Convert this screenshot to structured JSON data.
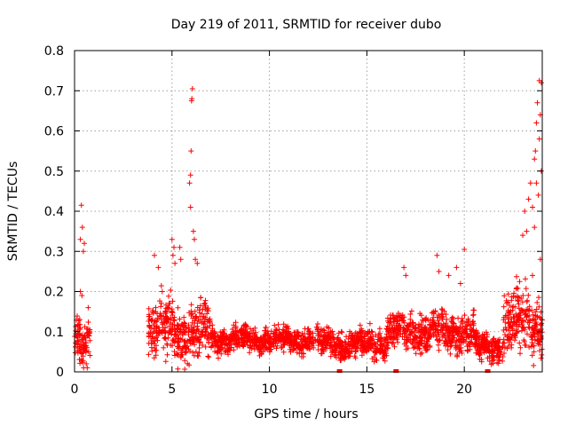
{
  "chart_data": {
    "type": "scatter",
    "title": "Day 219 of 2011, SRMTID for receiver dubo",
    "xlabel": "GPS time / hours",
    "ylabel": "SRMTID / TECUs",
    "xlim": [
      0,
      24
    ],
    "ylim": [
      0,
      0.8
    ],
    "xticks": [
      0,
      5,
      10,
      15,
      20
    ],
    "xtick_labels": [
      "0",
      "5",
      "10",
      "15",
      "20"
    ],
    "yticks": [
      0,
      0.1,
      0.2,
      0.3,
      0.4,
      0.5,
      0.6,
      0.7,
      0.8
    ],
    "ytick_labels": [
      "0",
      "0.1",
      "0.2",
      "0.3",
      "0.4",
      "0.5",
      "0.6",
      "0.7",
      "0.8"
    ],
    "grid": true,
    "marker": "plus",
    "marker_color": "#ff0000",
    "series": [
      {
        "name": "SRMTID",
        "segments": [
          {
            "x_start": 0.0,
            "x_end": 0.8,
            "base": 0.07,
            "spread": 0.1
          },
          {
            "x_start": 3.8,
            "x_end": 7.0,
            "base": 0.1,
            "spread": 0.12
          },
          {
            "x_start": 7.0,
            "x_end": 12.5,
            "base": 0.08,
            "spread": 0.05
          },
          {
            "x_start": 12.5,
            "x_end": 16.0,
            "base": 0.07,
            "spread": 0.06
          },
          {
            "x_start": 16.0,
            "x_end": 20.5,
            "base": 0.1,
            "spread": 0.08
          },
          {
            "x_start": 20.5,
            "x_end": 22.0,
            "base": 0.06,
            "spread": 0.06
          },
          {
            "x_start": 22.0,
            "x_end": 24.0,
            "base": 0.12,
            "spread": 0.14
          }
        ],
        "highlights": [
          [
            0.35,
            0.415
          ],
          [
            0.4,
            0.36
          ],
          [
            0.3,
            0.33
          ],
          [
            0.45,
            0.3
          ],
          [
            0.5,
            0.32
          ],
          [
            0.3,
            0.2
          ],
          [
            0.38,
            0.19
          ],
          [
            0.7,
            0.16
          ],
          [
            0.6,
            0.02
          ],
          [
            0.65,
            0.01
          ],
          [
            5.0,
            0.33
          ],
          [
            5.1,
            0.31
          ],
          [
            5.05,
            0.29
          ],
          [
            5.15,
            0.27
          ],
          [
            5.4,
            0.31
          ],
          [
            5.45,
            0.28
          ],
          [
            6.05,
            0.705
          ],
          [
            6.0,
            0.675
          ],
          [
            6.02,
            0.68
          ],
          [
            5.98,
            0.55
          ],
          [
            5.95,
            0.49
          ],
          [
            5.9,
            0.47
          ],
          [
            5.95,
            0.41
          ],
          [
            6.1,
            0.35
          ],
          [
            6.15,
            0.33
          ],
          [
            6.2,
            0.28
          ],
          [
            6.3,
            0.27
          ],
          [
            4.1,
            0.29
          ],
          [
            4.3,
            0.26
          ],
          [
            4.5,
            0.2
          ],
          [
            16.9,
            0.26
          ],
          [
            17.0,
            0.24
          ],
          [
            18.6,
            0.29
          ],
          [
            18.7,
            0.25
          ],
          [
            19.6,
            0.26
          ],
          [
            19.2,
            0.24
          ],
          [
            20.0,
            0.305
          ],
          [
            19.8,
            0.22
          ],
          [
            23.85,
            0.725
          ],
          [
            23.95,
            0.72
          ],
          [
            23.75,
            0.67
          ],
          [
            23.9,
            0.64
          ],
          [
            23.7,
            0.62
          ],
          [
            23.85,
            0.58
          ],
          [
            23.65,
            0.55
          ],
          [
            23.6,
            0.53
          ],
          [
            23.95,
            0.5
          ],
          [
            23.7,
            0.47
          ],
          [
            23.4,
            0.47
          ],
          [
            23.3,
            0.43
          ],
          [
            23.5,
            0.41
          ],
          [
            23.8,
            0.44
          ],
          [
            23.1,
            0.4
          ],
          [
            23.2,
            0.35
          ],
          [
            23.0,
            0.34
          ],
          [
            23.6,
            0.36
          ],
          [
            23.9,
            0.28
          ],
          [
            23.5,
            0.24
          ]
        ],
        "zero_points": [
          13.6,
          16.5,
          21.2
        ]
      }
    ]
  }
}
